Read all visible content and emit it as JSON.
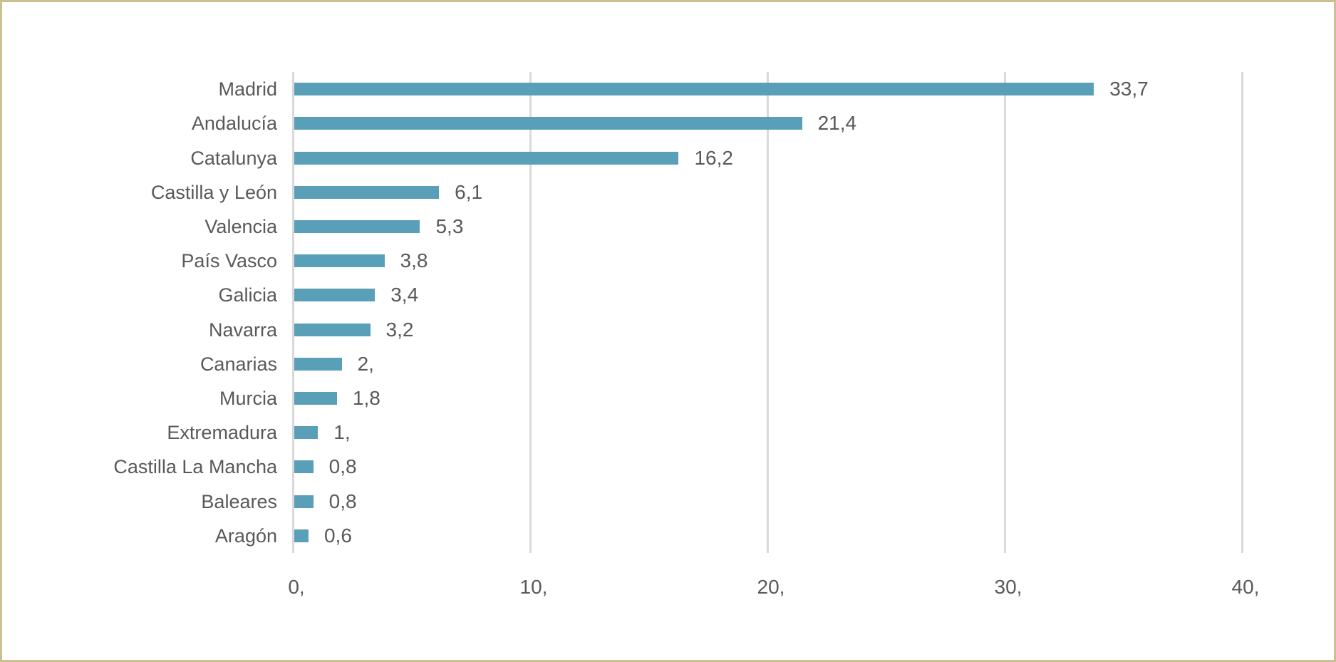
{
  "frame": {
    "border_color": "#CCC08F",
    "background_color": "#FFFFFF"
  },
  "chart_data": {
    "type": "bar",
    "orientation": "horizontal",
    "title": "",
    "xlabel": "",
    "ylabel": "",
    "categories": [
      "Madrid",
      "Andalucía",
      "Catalunya",
      "Castilla y León",
      "Valencia",
      "País Vasco",
      "Galicia",
      "Navarra",
      "Canarias",
      "Murcia",
      "Extremadura",
      "Castilla La Mancha",
      "Baleares",
      "Aragón"
    ],
    "values": [
      33.7,
      21.4,
      16.2,
      6.1,
      5.3,
      3.8,
      3.4,
      3.2,
      2.0,
      1.8,
      1.0,
      0.8,
      0.8,
      0.6
    ],
    "data_labels": [
      "33,7",
      "21,4",
      "16,2",
      "6,1",
      "5,3",
      "3,8",
      "3,4",
      "3,2",
      "2,",
      "1,8",
      "1,",
      "0,8",
      "0,8",
      "0,6"
    ],
    "x_ticks": [
      0,
      10,
      20,
      30,
      40
    ],
    "x_tick_labels": [
      "0,",
      "10,",
      "20,",
      "30,",
      "40,"
    ],
    "xlim": [
      0,
      40
    ],
    "grid": true,
    "legend_position": "none",
    "bar_color": "#5A9FB8",
    "text_color": "#595959",
    "gridline_color": "#D9D9D9"
  }
}
